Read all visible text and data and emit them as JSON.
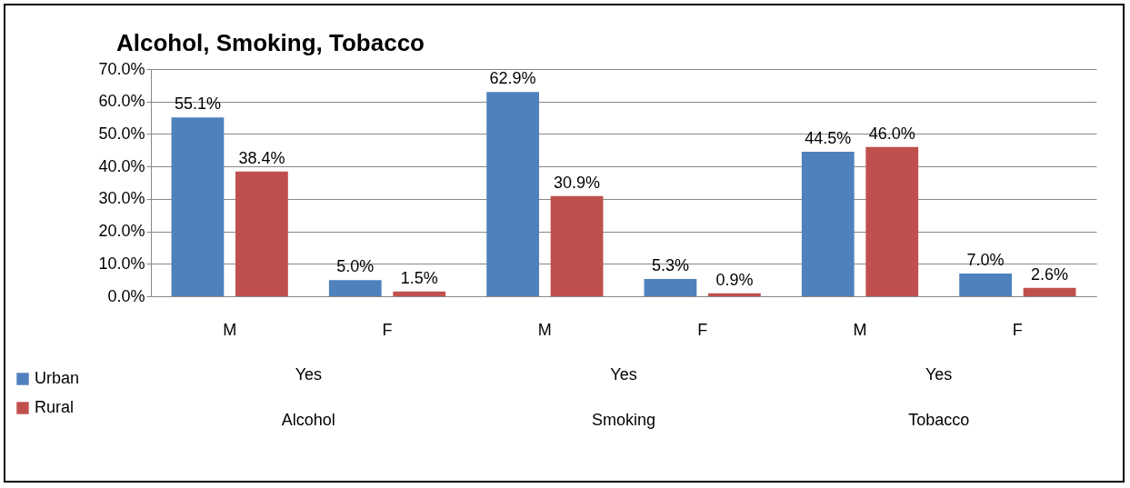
{
  "chart_data": {
    "type": "bar",
    "title": "Alcohol, Smoking, Tobacco",
    "categories": [
      "M",
      "F",
      "M",
      "F",
      "M",
      "F"
    ],
    "series": [
      {
        "name": "Urban",
        "color": "#4f81bd",
        "values": [
          55.1,
          5.0,
          62.9,
          5.3,
          44.5,
          7.0
        ],
        "value_labels": [
          "55.1%",
          "5.0%",
          "62.9%",
          "5.3%",
          "44.5%",
          "7.0%"
        ]
      },
      {
        "name": "Rural",
        "color": "#c0504d",
        "values": [
          38.4,
          1.5,
          30.9,
          0.9,
          46.0,
          2.6
        ],
        "value_labels": [
          "38.4%",
          "1.5%",
          "30.9%",
          "0.9%",
          "46.0%",
          "2.6%"
        ]
      }
    ],
    "annotations": [
      "Yes",
      "Yes",
      "Yes",
      "Alcohol",
      "Smoking",
      "Tobacco"
    ],
    "ylim": [
      0,
      70
    ],
    "yticks": [
      {
        "value": 0,
        "label": "0.0%"
      },
      {
        "value": 10,
        "label": "10.0%"
      },
      {
        "value": 20,
        "label": "20.0%"
      },
      {
        "value": 30,
        "label": "30.0%"
      },
      {
        "value": 40,
        "label": "40.0%"
      },
      {
        "value": 50,
        "label": "50.0%"
      },
      {
        "value": 60,
        "label": "60.0%"
      },
      {
        "value": 70,
        "label": "70.0%"
      }
    ],
    "grid": "y",
    "legend": "bottom left"
  }
}
